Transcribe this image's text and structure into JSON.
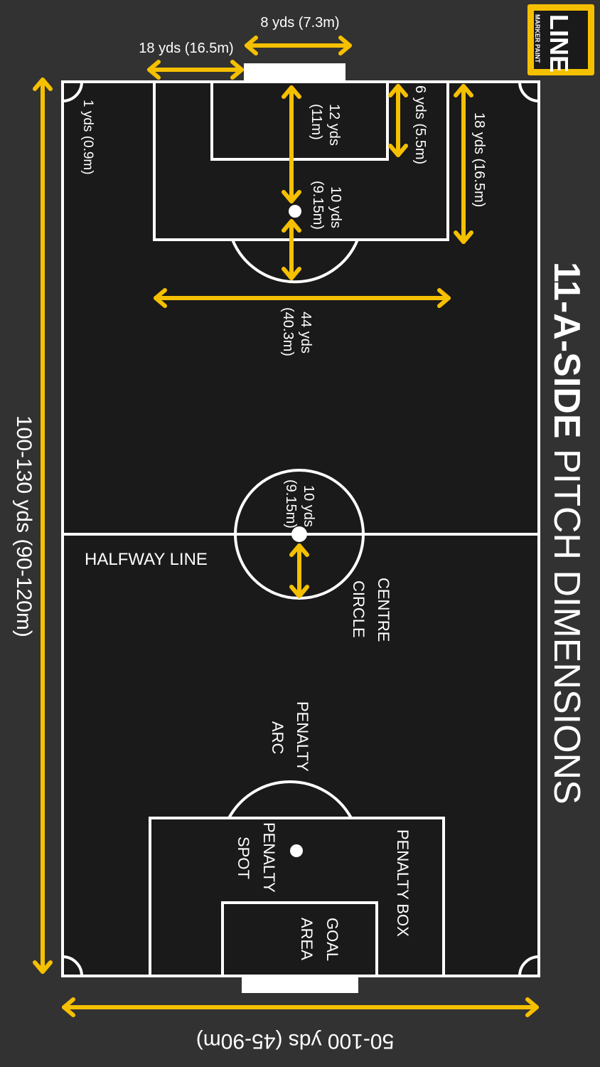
{
  "title": {
    "bold": "11-A-SIDE",
    "rest": " PITCH DIMENSIONS"
  },
  "logo": {
    "main": "LINE",
    "sub": "MARKER PAINT"
  },
  "labels": {
    "total_length": "100-130 yds (90-120m)",
    "total_width": "50-100 yds (45-90m)",
    "goal_width": "8 yds (7.3m)",
    "box_offset": "18 yds (16.5m)",
    "corner_radius": "1 yds (0.9m)",
    "spot_distance_a": "12 yds",
    "spot_distance_b": "(11m)",
    "goal_area_depth": "6 yds (5.5m)",
    "box_depth": "18 yds (16.5m)",
    "arc_radius_a": "10 yds",
    "arc_radius_b": "(9.15m)",
    "box_width_a": "44 yds",
    "box_width_b": "(40.3m)",
    "circle_radius_a": "10 yds",
    "circle_radius_b": "(9.15m)",
    "halfway_line": "HALFWAY LINE",
    "centre_circle_a": "CENTRE",
    "centre_circle_b": "CIRCLE",
    "penalty_arc_a": "PENALTY",
    "penalty_arc_b": "ARC",
    "penalty_box": "PENALTY BOX",
    "penalty_spot_a": "PENALTY",
    "penalty_spot_b": "SPOT",
    "goal_area_a": "GOAL",
    "goal_area_b": "AREA"
  },
  "colors": {
    "background": "#333232",
    "pitch": "#1a1a1a",
    "line": "#ffffff",
    "arrow": "#f5c000"
  }
}
